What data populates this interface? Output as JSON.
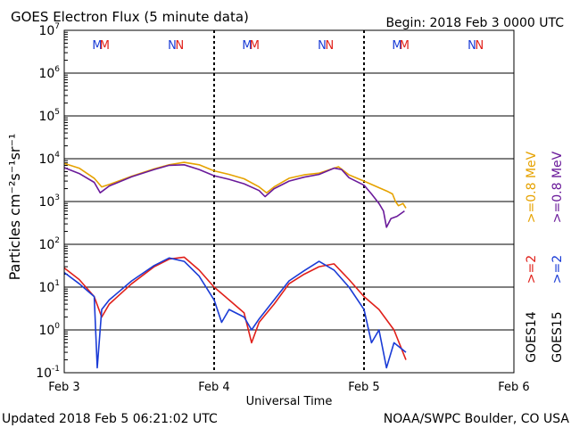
{
  "chart_data": {
    "type": "line",
    "title": "GOES Electron Flux (5 minute data)",
    "begin_label": "Begin: 2018 Feb 3 0000 UTC",
    "xlabel": "Universal Time",
    "ylabel": "Particles cm⁻²s⁻¹sr⁻¹",
    "y_scale": "log",
    "ylim": [
      0.1,
      10000000
    ],
    "xlim_days": [
      0,
      3
    ],
    "x_ticks": [
      {
        "day": 0,
        "label": "Feb 3"
      },
      {
        "day": 1,
        "label": "Feb 4"
      },
      {
        "day": 2,
        "label": "Feb 5"
      },
      {
        "day": 3,
        "label": "Feb 6"
      }
    ],
    "y_ticks": [
      {
        "exp": -1,
        "base": "10",
        "sup": "-1"
      },
      {
        "exp": 0,
        "base": "10",
        "sup": "0"
      },
      {
        "exp": 1,
        "base": "10",
        "sup": "1"
      },
      {
        "exp": 2,
        "base": "10",
        "sup": "2"
      },
      {
        "exp": 3,
        "base": "10",
        "sup": "3"
      },
      {
        "exp": 4,
        "base": "10",
        "sup": "4"
      },
      {
        "exp": 5,
        "base": "10",
        "sup": "5"
      },
      {
        "exp": 6,
        "base": "10",
        "sup": "6"
      },
      {
        "exp": 7,
        "base": "10",
        "sup": "7"
      }
    ],
    "threshold_line": 1000,
    "local_time_markers": [
      {
        "day": 0.22,
        "letter": "M",
        "color": "#1a3bd6"
      },
      {
        "day": 0.27,
        "letter": "M",
        "color": "#e0201a"
      },
      {
        "day": 0.72,
        "letter": "N",
        "color": "#1a3bd6"
      },
      {
        "day": 0.77,
        "letter": "N",
        "color": "#e0201a"
      },
      {
        "day": 1.22,
        "letter": "M",
        "color": "#1a3bd6"
      },
      {
        "day": 1.27,
        "letter": "M",
        "color": "#e0201a"
      },
      {
        "day": 1.72,
        "letter": "N",
        "color": "#1a3bd6"
      },
      {
        "day": 1.77,
        "letter": "N",
        "color": "#e0201a"
      },
      {
        "day": 2.22,
        "letter": "M",
        "color": "#1a3bd6"
      },
      {
        "day": 2.27,
        "letter": "M",
        "color": "#e0201a"
      },
      {
        "day": 2.72,
        "letter": "N",
        "color": "#1a3bd6"
      },
      {
        "day": 2.77,
        "letter": "N",
        "color": "#e0201a"
      }
    ],
    "series": [
      {
        "name": "GOES14 >=0.8 MeV",
        "color": "#e6a200",
        "points": [
          [
            0,
            7800
          ],
          [
            0.1,
            6000
          ],
          [
            0.2,
            3500
          ],
          [
            0.25,
            2200
          ],
          [
            0.3,
            2500
          ],
          [
            0.45,
            3900
          ],
          [
            0.6,
            5800
          ],
          [
            0.7,
            7200
          ],
          [
            0.8,
            8200
          ],
          [
            0.9,
            7200
          ],
          [
            1.0,
            5200
          ],
          [
            1.1,
            4300
          ],
          [
            1.2,
            3400
          ],
          [
            1.3,
            2200
          ],
          [
            1.35,
            1600
          ],
          [
            1.4,
            2200
          ],
          [
            1.5,
            3500
          ],
          [
            1.6,
            4200
          ],
          [
            1.7,
            4600
          ],
          [
            1.8,
            6000
          ],
          [
            1.83,
            6500
          ],
          [
            1.9,
            4200
          ],
          [
            2.0,
            3000
          ],
          [
            2.1,
            2100
          ],
          [
            2.16,
            1700
          ],
          [
            2.19,
            1500
          ],
          [
            2.21,
            1000
          ],
          [
            2.23,
            800
          ],
          [
            2.26,
            900
          ],
          [
            2.28,
            700
          ]
        ]
      },
      {
        "name": "GOES15 >=0.8 MeV",
        "color": "#6a1a9a",
        "points": [
          [
            0,
            6200
          ],
          [
            0.1,
            4500
          ],
          [
            0.2,
            2800
          ],
          [
            0.24,
            1600
          ],
          [
            0.3,
            2300
          ],
          [
            0.45,
            3800
          ],
          [
            0.6,
            5600
          ],
          [
            0.7,
            7000
          ],
          [
            0.8,
            7200
          ],
          [
            0.9,
            5600
          ],
          [
            1.0,
            4000
          ],
          [
            1.1,
            3300
          ],
          [
            1.2,
            2600
          ],
          [
            1.3,
            1800
          ],
          [
            1.34,
            1300
          ],
          [
            1.4,
            2000
          ],
          [
            1.5,
            3000
          ],
          [
            1.6,
            3700
          ],
          [
            1.7,
            4300
          ],
          [
            1.8,
            6000
          ],
          [
            1.85,
            5600
          ],
          [
            1.9,
            3600
          ],
          [
            2.0,
            2400
          ],
          [
            2.05,
            1500
          ],
          [
            2.1,
            900
          ],
          [
            2.13,
            600
          ],
          [
            2.15,
            250
          ],
          [
            2.18,
            400
          ],
          [
            2.22,
            450
          ],
          [
            2.27,
            600
          ]
        ]
      },
      {
        "name": "GOES14 >=2 MeV",
        "color": "#e0201a",
        "points": [
          [
            0,
            28
          ],
          [
            0.1,
            15
          ],
          [
            0.2,
            6
          ],
          [
            0.25,
            2
          ],
          [
            0.3,
            4
          ],
          [
            0.45,
            12
          ],
          [
            0.6,
            30
          ],
          [
            0.7,
            45
          ],
          [
            0.8,
            50
          ],
          [
            0.9,
            25
          ],
          [
            1.0,
            10
          ],
          [
            1.1,
            5
          ],
          [
            1.2,
            2.5
          ],
          [
            1.25,
            0.5
          ],
          [
            1.3,
            1.5
          ],
          [
            1.4,
            4
          ],
          [
            1.5,
            12
          ],
          [
            1.6,
            20
          ],
          [
            1.7,
            30
          ],
          [
            1.8,
            35
          ],
          [
            1.9,
            15
          ],
          [
            2.0,
            6
          ],
          [
            2.1,
            3
          ],
          [
            2.2,
            1
          ],
          [
            2.28,
            0.2
          ]
        ]
      },
      {
        "name": "GOES15 >=2 MeV",
        "color": "#1a3bd6",
        "points": [
          [
            0,
            22
          ],
          [
            0.1,
            12
          ],
          [
            0.2,
            6
          ],
          [
            0.22,
            0.13
          ],
          [
            0.25,
            3
          ],
          [
            0.3,
            5
          ],
          [
            0.45,
            14
          ],
          [
            0.6,
            32
          ],
          [
            0.7,
            48
          ],
          [
            0.8,
            40
          ],
          [
            0.9,
            18
          ],
          [
            1.0,
            5
          ],
          [
            1.05,
            1.5
          ],
          [
            1.1,
            3
          ],
          [
            1.2,
            2
          ],
          [
            1.25,
            1
          ],
          [
            1.3,
            1.8
          ],
          [
            1.4,
            5
          ],
          [
            1.5,
            14
          ],
          [
            1.6,
            24
          ],
          [
            1.7,
            40
          ],
          [
            1.8,
            25
          ],
          [
            1.9,
            10
          ],
          [
            2.0,
            3
          ],
          [
            2.05,
            0.5
          ],
          [
            2.1,
            1
          ],
          [
            2.15,
            0.13
          ],
          [
            2.2,
            0.5
          ],
          [
            2.28,
            0.3
          ]
        ]
      }
    ],
    "legend": [
      {
        "text": ">=0.8 MeV",
        "color": "#e6a200"
      },
      {
        "text": ">=0.8 MeV",
        "color": "#6a1a9a"
      },
      {
        "text": ">=2",
        "color": "#e0201a"
      },
      {
        "text": ">=2",
        "color": "#1a3bd6"
      },
      {
        "text": "GOES14",
        "color": "#000000"
      },
      {
        "text": "GOES15",
        "color": "#000000"
      }
    ],
    "footer_left": "Updated 2018 Feb  5 06:21:02 UTC",
    "footer_right": "NOAA/SWPC Boulder, CO USA"
  }
}
